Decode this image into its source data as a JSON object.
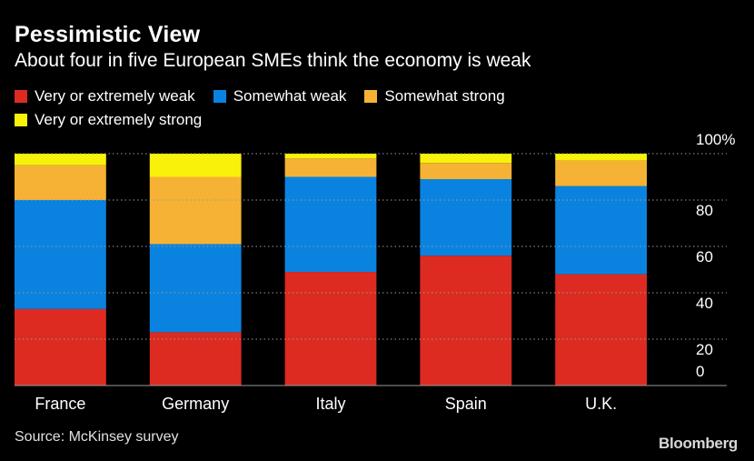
{
  "chart_data": {
    "type": "bar",
    "stacked": true,
    "title": "Pessimistic View",
    "subtitle": "About four in five European SMEs think the economy is weak",
    "categories": [
      "France",
      "Germany",
      "Italy",
      "Spain",
      "U.K."
    ],
    "series": [
      {
        "name": "Very or extremely weak",
        "color": "#dd2b21",
        "values": [
          33,
          23,
          49,
          56,
          48
        ]
      },
      {
        "name": "Somewhat weak",
        "color": "#0a83e0",
        "values": [
          47,
          38,
          41,
          33,
          38
        ]
      },
      {
        "name": "Somewhat strong",
        "color": "#f6b234",
        "values": [
          15,
          29,
          8,
          7,
          11
        ]
      },
      {
        "name": "Very or extremely strong",
        "color": "#f8f10a",
        "values": [
          5,
          10,
          2,
          4,
          3
        ]
      }
    ],
    "y_ticks": [
      "0",
      "20",
      "40",
      "60",
      "80",
      "100%"
    ],
    "ylim": [
      0,
      100
    ],
    "grid": true,
    "legend_position": "top-left",
    "source": "Source: McKinsey survey",
    "brand": "Bloomberg"
  }
}
